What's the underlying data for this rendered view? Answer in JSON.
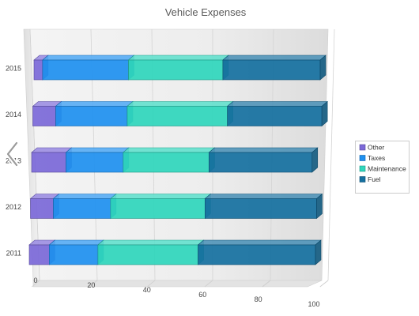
{
  "chart_data": {
    "type": "bar",
    "orientation": "horizontal",
    "stacked": true,
    "three_d": true,
    "title": "Vehicle Expenses",
    "categories": [
      "2011",
      "2012",
      "2013",
      "2014",
      "2015"
    ],
    "series": [
      {
        "name": "Other",
        "color": "#7b68d8",
        "values": [
          7,
          8,
          12,
          8,
          3
        ]
      },
      {
        "name": "Taxes",
        "color": "#1e90f0",
        "values": [
          17,
          20,
          20,
          25,
          30
        ]
      },
      {
        "name": "Maintenance",
        "color": "#2fd6bc",
        "values": [
          35,
          33,
          30,
          35,
          33
        ]
      },
      {
        "name": "Fuel",
        "color": "#1570a0",
        "values": [
          41,
          39,
          36,
          33,
          34
        ]
      }
    ],
    "xlim": [
      0,
      100
    ],
    "x_ticks": [
      "0",
      "20",
      "40",
      "60",
      "80",
      "100"
    ],
    "grid": true,
    "legend": "right"
  },
  "nav": {
    "prev_icon": "chevron-left-icon"
  }
}
